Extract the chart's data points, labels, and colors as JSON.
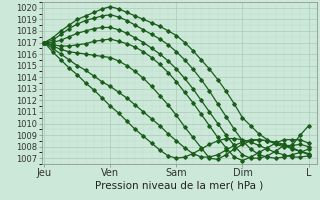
{
  "xlabel": "Pression niveau de la mer( hPa )",
  "xtick_labels": [
    "Jeu",
    "Ven",
    "Sam",
    "Dim",
    "L"
  ],
  "xtick_positions": [
    0,
    24,
    48,
    72,
    96
  ],
  "ylim": [
    1006.5,
    1020.5
  ],
  "xlim": [
    -1,
    99
  ],
  "ytick_min": 1007,
  "ytick_max": 1020,
  "bg_color": "#cce8d8",
  "grid_major_color": "#aacaba",
  "grid_minor_color": "#bbdacb",
  "line_color": "#1a5c1a",
  "line_width": 0.9,
  "lines": [
    {
      "x": [
        0,
        3,
        6,
        9,
        12,
        15,
        18,
        21,
        24,
        27,
        30,
        33,
        36,
        39,
        42,
        45,
        48,
        51,
        54,
        57,
        60,
        63,
        66,
        69,
        72,
        75,
        78,
        81,
        84,
        87,
        90,
        93,
        96
      ],
      "y": [
        1017,
        1017.4,
        1018.0,
        1018.5,
        1019.0,
        1019.3,
        1019.6,
        1019.9,
        1020.1,
        1019.9,
        1019.6,
        1019.3,
        1019.0,
        1018.7,
        1018.4,
        1018.0,
        1017.6,
        1017.0,
        1016.3,
        1015.5,
        1014.7,
        1013.8,
        1012.8,
        1011.7,
        1010.5,
        1009.8,
        1009.1,
        1008.6,
        1008.2,
        1008.0,
        1008.1,
        1009.0,
        1009.8
      ]
    },
    {
      "x": [
        0,
        3,
        6,
        9,
        12,
        15,
        18,
        21,
        24,
        27,
        30,
        33,
        36,
        39,
        42,
        45,
        48,
        51,
        54,
        57,
        60,
        63,
        66,
        69,
        72,
        75,
        78,
        81,
        84,
        87,
        90,
        93,
        96
      ],
      "y": [
        1017,
        1017.2,
        1017.7,
        1018.2,
        1018.6,
        1018.9,
        1019.1,
        1019.3,
        1019.4,
        1019.2,
        1018.9,
        1018.5,
        1018.1,
        1017.7,
        1017.3,
        1016.8,
        1016.2,
        1015.5,
        1014.7,
        1013.8,
        1012.8,
        1011.7,
        1010.6,
        1009.5,
        1008.5,
        1007.8,
        1007.3,
        1007.1,
        1007.0,
        1007.1,
        1007.3,
        1007.5,
        1007.8
      ]
    },
    {
      "x": [
        0,
        3,
        6,
        9,
        12,
        15,
        18,
        21,
        24,
        27,
        30,
        33,
        36,
        39,
        42,
        45,
        48,
        51,
        54,
        57,
        60,
        63,
        66,
        69,
        72,
        75,
        78,
        81,
        84,
        87,
        90,
        93,
        96
      ],
      "y": [
        1017,
        1017.0,
        1017.2,
        1017.5,
        1017.8,
        1018.0,
        1018.2,
        1018.3,
        1018.3,
        1018.1,
        1017.8,
        1017.4,
        1017.0,
        1016.5,
        1016.0,
        1015.4,
        1014.7,
        1013.9,
        1013.0,
        1012.0,
        1011.0,
        1010.0,
        1009.0,
        1008.1,
        1007.3,
        1007.0,
        1007.0,
        1007.2,
        1007.6,
        1008.1,
        1008.1,
        1008.2,
        1008.0
      ]
    },
    {
      "x": [
        0,
        3,
        6,
        9,
        12,
        15,
        18,
        21,
        24,
        27,
        30,
        33,
        36,
        39,
        42,
        45,
        48,
        51,
        54,
        57,
        60,
        63,
        66,
        69,
        72,
        75,
        78,
        81,
        84,
        87,
        90,
        93,
        96
      ],
      "y": [
        1017,
        1016.8,
        1016.7,
        1016.7,
        1016.8,
        1016.9,
        1017.1,
        1017.2,
        1017.3,
        1017.1,
        1016.9,
        1016.6,
        1016.2,
        1015.7,
        1015.1,
        1014.4,
        1013.6,
        1012.7,
        1011.8,
        1010.8,
        1009.8,
        1008.8,
        1007.9,
        1007.1,
        1006.8,
        1007.1,
        1007.5,
        1007.9,
        1008.3,
        1008.6,
        1008.6,
        1008.6,
        1008.3
      ]
    },
    {
      "x": [
        0,
        3,
        6,
        9,
        12,
        15,
        18,
        21,
        24,
        27,
        30,
        33,
        36,
        39,
        42,
        45,
        48,
        51,
        54,
        57,
        60,
        63,
        66,
        69,
        72,
        75,
        78,
        81,
        84,
        87,
        90,
        93,
        96
      ],
      "y": [
        1017,
        1016.7,
        1016.4,
        1016.2,
        1016.1,
        1016.0,
        1015.9,
        1015.8,
        1015.7,
        1015.4,
        1015.0,
        1014.5,
        1013.9,
        1013.2,
        1012.4,
        1011.6,
        1010.7,
        1009.7,
        1008.8,
        1007.9,
        1007.0,
        1006.9,
        1007.3,
        1007.8,
        1008.2,
        1008.5,
        1008.6,
        1008.5,
        1008.4,
        1008.2,
        1007.9,
        1007.6,
        1007.4
      ]
    },
    {
      "x": [
        0,
        3,
        6,
        9,
        12,
        15,
        18,
        21,
        24,
        27,
        30,
        33,
        36,
        39,
        42,
        45,
        48,
        51,
        54,
        57,
        60,
        63,
        66,
        69,
        72,
        75,
        78,
        81,
        84,
        87,
        90,
        93,
        96
      ],
      "y": [
        1017,
        1016.5,
        1016.0,
        1015.5,
        1015.0,
        1014.6,
        1014.1,
        1013.6,
        1013.2,
        1012.7,
        1012.2,
        1011.6,
        1011.0,
        1010.4,
        1009.8,
        1009.1,
        1008.5,
        1007.9,
        1007.4,
        1007.1,
        1007.1,
        1007.3,
        1007.7,
        1008.1,
        1008.4,
        1008.6,
        1008.6,
        1008.5,
        1008.3,
        1008.1,
        1007.8,
        1007.6,
        1007.3
      ]
    },
    {
      "x": [
        0,
        3,
        6,
        9,
        12,
        15,
        18,
        21,
        24,
        27,
        30,
        33,
        36,
        39,
        42,
        45,
        48,
        51,
        54,
        57,
        60,
        63,
        66,
        69,
        72,
        75,
        78,
        81,
        84,
        87,
        90,
        93,
        96
      ],
      "y": [
        1017,
        1016.2,
        1015.5,
        1014.8,
        1014.2,
        1013.5,
        1012.9,
        1012.2,
        1011.5,
        1010.9,
        1010.2,
        1009.5,
        1008.9,
        1008.3,
        1007.7,
        1007.2,
        1007.0,
        1007.1,
        1007.4,
        1007.8,
        1008.2,
        1008.5,
        1008.7,
        1008.7,
        1008.6,
        1008.4,
        1008.1,
        1007.8,
        1007.5,
        1007.3,
        1007.1,
        1007.1,
        1007.2
      ]
    }
  ]
}
